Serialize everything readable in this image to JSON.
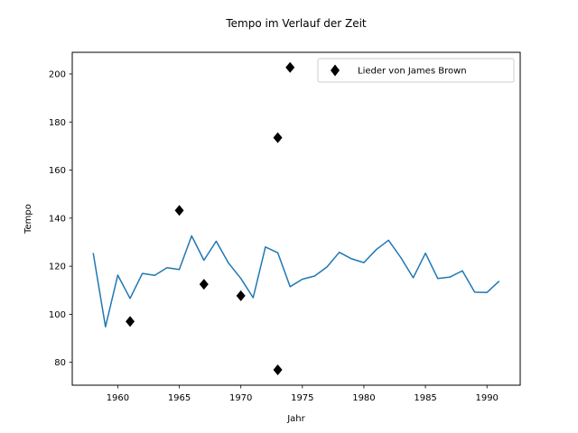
{
  "chart_data": {
    "type": "line",
    "title": "Tempo im Verlauf der Zeit",
    "xlabel": "Jahr",
    "ylabel": "Tempo",
    "xlim": [
      1956.3,
      1992.7
    ],
    "ylim": [
      70.5,
      209
    ],
    "xticks": [
      1960,
      1965,
      1970,
      1975,
      1980,
      1985,
      1990
    ],
    "yticks": [
      80,
      100,
      120,
      140,
      160,
      180,
      200
    ],
    "grid": false,
    "legend_position": "top-right",
    "series": [
      {
        "type": "line",
        "color": "#1f77b4",
        "x": [
          1958,
          1959,
          1960,
          1961,
          1962,
          1963,
          1964,
          1965,
          1966,
          1967,
          1968,
          1969,
          1970,
          1971,
          1972,
          1973,
          1974,
          1975,
          1976,
          1977,
          1978,
          1979,
          1980,
          1981,
          1982,
          1983,
          1984,
          1985,
          1986,
          1987,
          1988,
          1989,
          1990,
          1991
        ],
        "y": [
          125.5,
          94.8,
          116.3,
          106.6,
          117,
          116.2,
          119.4,
          118.6,
          132.6,
          122.5,
          130.4,
          121.3,
          114.9,
          106.9,
          128,
          125.6,
          111.5,
          114.6,
          115.9,
          119.7,
          125.8,
          123.1,
          121.5,
          126.9,
          130.8,
          123.6,
          115.2,
          125.4,
          114.9,
          115.5,
          118.1,
          109.2,
          109.1,
          113.8
        ]
      },
      {
        "type": "scatter",
        "name": "Lieder von James Brown",
        "color": "#000000",
        "marker": "diamond",
        "x": [
          1961,
          1965,
          1967,
          1970,
          1973,
          1973,
          1974
        ],
        "y": [
          97,
          143.2,
          112.5,
          107.7,
          76.9,
          173.5,
          202.7
        ]
      }
    ]
  }
}
